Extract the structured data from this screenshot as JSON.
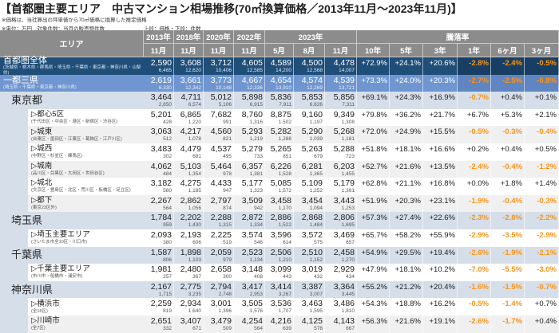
{
  "title": "【首都圏主要エリア　中古マンション相場推移(70㎡換算価格／2013年11月～2023年11月)】",
  "notes": {
    "n1": "※価格は、当社算出の坪単価から70㎡価格に換算した推定価格",
    "n2": "※単位：万円　対象件数：当月の販売物件数",
    "n3": "上段：価格・下段：件数"
  },
  "header": {
    "area": "エリア",
    "years": [
      "2013年",
      "2018年",
      "2020年",
      "2022年"
    ],
    "year_2023": "2023年",
    "rate": "騰落率",
    "months": [
      "11月",
      "11月",
      "11月",
      "11月",
      "5月",
      "8月",
      "11月"
    ],
    "rate_cols": [
      "10年",
      "5年",
      "3年",
      "1年",
      "6ヶ月",
      "3ヶ月"
    ]
  },
  "colors": {
    "header": "#8c8c8c",
    "total": "#1f4e79",
    "metro": "#6f96d0",
    "pref": "#d6dfe9",
    "negative": "#f7941d"
  },
  "rows": [
    {
      "type": "total",
      "name": "首都圏全体",
      "sub": "(茨城県・栃木県・群馬県・埼玉県・千葉県・東京都・神奈川県・山梨県)",
      "prices": [
        "2,590",
        "3,608",
        "3,712",
        "4,605",
        "4,589",
        "4,500",
        "4,478"
      ],
      "counts": [
        "6,465",
        "12,620",
        "10,406",
        "12,585",
        "14,200",
        "12,568",
        "14,007"
      ],
      "rates": [
        "+72.9%",
        "+24.1%",
        "+20.6%",
        "-2.8%",
        "-2.4%",
        "-0.5%"
      ]
    },
    {
      "type": "metro",
      "name": "一都三県",
      "sub": "(埼玉県・千葉県・東京都・神奈川県)",
      "prices": [
        "2,619",
        "3,661",
        "3,773",
        "4,667",
        "4,654",
        "4,574",
        "4,539"
      ],
      "counts": [
        "6,330",
        "12,342",
        "10,148",
        "12,336",
        "13,910",
        "12,269",
        "13,721"
      ],
      "rates": [
        "+73.3%",
        "+24.0%",
        "+20.3%",
        "-2.7%",
        "-2.5%",
        "-0.8%"
      ]
    },
    {
      "type": "pref",
      "name": "東京都",
      "sub": "",
      "prices": [
        "3,464",
        "4,711",
        "5,012",
        "5,898",
        "5,836",
        "5,853",
        "5,856"
      ],
      "counts": [
        "2,850",
        "6,574",
        "5,106",
        "6,915",
        "7,911",
        "6,626",
        "7,311"
      ],
      "rates": [
        "+69.1%",
        "+24.3%",
        "+16.9%",
        "-0.7%",
        "+0.4%",
        "+0.1%"
      ]
    },
    {
      "type": "sub",
      "name": "▷都心5区",
      "sub": "(千代田区・中央区・港区・新宿区・渋谷区)",
      "prices": [
        "5,201",
        "6,865",
        "7,682",
        "8,760",
        "8,875",
        "9,160",
        "9,349"
      ],
      "counts": [
        "428",
        "1,220",
        "991",
        "1,316",
        "1,502",
        "1,197",
        "1,308"
      ],
      "rates": [
        "+79.8%",
        "+36.2%",
        "+21.7%",
        "+6.7%",
        "+5.3%",
        "+2.1%"
      ]
    },
    {
      "type": "sub alt",
      "name": "▷城東",
      "sub": "(台東区・墨田区・江東区・葛飾区・江戸川区)",
      "prices": [
        "3,063",
        "4,217",
        "4,560",
        "5,293",
        "5,282",
        "5,290",
        "5,268"
      ],
      "counts": [
        "512",
        "1,078",
        "821",
        "1,219",
        "1,288",
        "1,039",
        "1,181"
      ],
      "rates": [
        "+72.0%",
        "+24.9%",
        "+15.5%",
        "-0.5%",
        "-0.3%",
        "-0.4%"
      ]
    },
    {
      "type": "sub",
      "name": "▷城西",
      "sub": "(中野区・杉並区・練馬区)",
      "prices": [
        "3,483",
        "4,479",
        "4,537",
        "5,279",
        "5,265",
        "5,263",
        "5,288"
      ],
      "counts": [
        "302",
        "681",
        "495",
        "733",
        "851",
        "679",
        "723"
      ],
      "rates": [
        "+51.8%",
        "+18.1%",
        "+16.6%",
        "+0.2%",
        "+0.4%",
        "+0.5%"
      ]
    },
    {
      "type": "sub alt",
      "name": "▷城南",
      "sub": "(品川区・目黒区・大田区・世田谷区)",
      "prices": [
        "4,062",
        "5,103",
        "5,464",
        "6,357",
        "6,226",
        "6,281",
        "6,203"
      ],
      "counts": [
        "484",
        "1,354",
        "978",
        "1,381",
        "1,528",
        "1,365",
        "1,455"
      ],
      "rates": [
        "+52.7%",
        "+21.6%",
        "+13.5%",
        "-2.4%",
        "-0.4%",
        "-1.2%"
      ]
    },
    {
      "type": "sub",
      "name": "▷城北",
      "sub": "(文京区・豊島区・北区・荒川区・板橋区・足立区)",
      "prices": [
        "3,182",
        "4,275",
        "4,433",
        "5,177",
        "5,085",
        "5,109",
        "5,179"
      ],
      "counts": [
        "560",
        "1,185",
        "947",
        "1,323",
        "1,572",
        "1,252",
        "1,391"
      ],
      "rates": [
        "+62.8%",
        "+21.1%",
        "+16.8%",
        "+0.0%",
        "+1.8%",
        "+1.4%"
      ]
    },
    {
      "type": "sub alt",
      "name": "▷都下",
      "sub": "(東京23区外)",
      "prices": [
        "2,267",
        "2,862",
        "2,797",
        "3,509",
        "3,458",
        "3,454",
        "3,443"
      ],
      "counts": [
        "564",
        "1,056",
        "874",
        "942",
        "1,170",
        "1,094",
        "1,253"
      ],
      "rates": [
        "+51.9%",
        "+20.3%",
        "+23.1%",
        "-1.9%",
        "-0.4%",
        "-0.3%"
      ]
    },
    {
      "type": "pref",
      "name": "埼玉県",
      "sub": "",
      "prices": [
        "1,784",
        "2,202",
        "2,288",
        "2,872",
        "2,886",
        "2,868",
        "2,806"
      ],
      "counts": [
        "959",
        "1,430",
        "1,315",
        "1,334",
        "1,522",
        "1,484",
        "1,695"
      ],
      "rates": [
        "+57.3%",
        "+27.4%",
        "+22.6%",
        "-2.3%",
        "-2.8%",
        "-2.2%"
      ]
    },
    {
      "type": "sub",
      "name": "▷埼玉主要エリア",
      "sub": "(さいたま市全10区・川口市)",
      "prices": [
        "2,093",
        "2,193",
        "2,225",
        "3,574",
        "3,596",
        "3,572",
        "3,469"
      ],
      "counts": [
        "380",
        "606",
        "519",
        "546",
        "614",
        "575",
        "657"
      ],
      "rates": [
        "+65.7%",
        "+58.2%",
        "+55.9%",
        "-2.9%",
        "-3.5%",
        "-2.9%"
      ]
    },
    {
      "type": "pref",
      "name": "千葉県",
      "sub": "",
      "prices": [
        "1,587",
        "1,898",
        "2,059",
        "2,523",
        "2,506",
        "2,510",
        "2,458"
      ],
      "counts": [
        "806",
        "1,103",
        "979",
        "1,134",
        "1,210",
        "1,152",
        "1,270"
      ],
      "rates": [
        "+54.9%",
        "+29.5%",
        "+19.4%",
        "-2.6%",
        "-1.9%",
        "-2.1%"
      ]
    },
    {
      "type": "sub",
      "name": "▷千葉主要エリア",
      "sub": "(市川市・船橋市・浦安市)",
      "prices": [
        "1,981",
        "2,480",
        "2,658",
        "3,148",
        "3,099",
        "3,019",
        "2,929"
      ],
      "counts": [
        "257",
        "367",
        "300",
        "408",
        "443",
        "432",
        "434"
      ],
      "rates": [
        "+47.9%",
        "+18.1%",
        "+10.2%",
        "-7.0%",
        "-5.5%",
        "-3.0%"
      ]
    },
    {
      "type": "pref",
      "name": "神奈川県",
      "sub": "",
      "prices": [
        "2,167",
        "2,775",
        "2,794",
        "3,417",
        "3,414",
        "3,387",
        "3,364"
      ],
      "counts": [
        "1,715",
        "3,235",
        "2,748",
        "2,953",
        "3,267",
        "3,007",
        "3,445"
      ],
      "rates": [
        "+55.2%",
        "+21.2%",
        "+20.4%",
        "-1.6%",
        "-1.5%",
        "-0.7%"
      ]
    },
    {
      "type": "sub",
      "name": "▷横浜市",
      "sub": "(全18区)",
      "prices": [
        "2,259",
        "2,934",
        "3,001",
        "3,505",
        "3,536",
        "3,463",
        "3,486"
      ],
      "counts": [
        "819",
        "1,640",
        "1,396",
        "1,576",
        "1,707",
        "1,595",
        "1,810"
      ],
      "rates": [
        "+54.3%",
        "+18.8%",
        "+16.2%",
        "-0.5%",
        "-1.4%",
        "+0.7%"
      ]
    },
    {
      "type": "sub alt",
      "name": "▷川崎市",
      "sub": "(全7区)",
      "prices": [
        "2,651",
        "3,407",
        "3,479",
        "4,254",
        "4,216",
        "4,125",
        "4,143"
      ],
      "counts": [
        "332",
        "671",
        "509",
        "564",
        "639",
        "578",
        "667"
      ],
      "rates": [
        "+56.3%",
        "+21.6%",
        "+19.1%",
        "-2.6%",
        "-1.7%",
        "+0.4%"
      ]
    }
  ]
}
